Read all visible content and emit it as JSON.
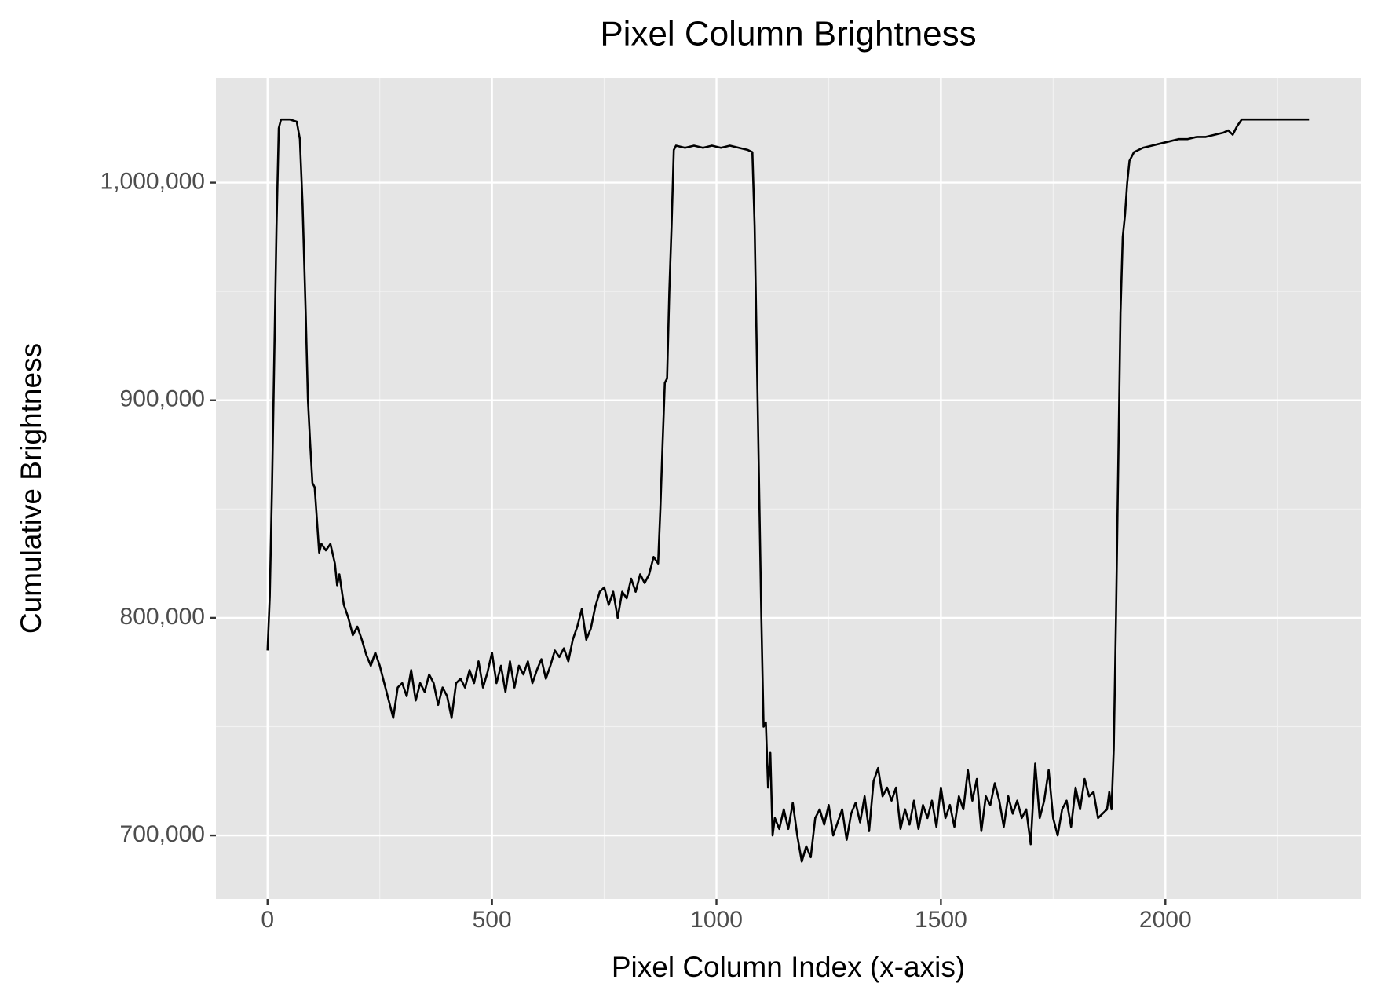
{
  "chart_data": {
    "type": "line",
    "title": "Pixel Column Brightness",
    "x_label": "Pixel Column Index (x-axis)",
    "y_label": "Cumulative Brightness",
    "xlim": [
      -115,
      2435
    ],
    "ylim": [
      670800,
      1048200
    ],
    "xticks": [
      0,
      500,
      1000,
      1500,
      2000
    ],
    "yticks": [
      {
        "value": 700000,
        "label": "700,000"
      },
      {
        "value": 800000,
        "label": "800,000"
      },
      {
        "value": 900000,
        "label": "900,000"
      },
      {
        "value": 1000000,
        "label": "1,000,000"
      }
    ],
    "xminor": [
      250,
      750,
      1250,
      1750,
      2250
    ],
    "yminor": [
      750000,
      850000,
      950000
    ],
    "grid": true,
    "x": [
      0,
      5,
      10,
      15,
      20,
      25,
      30,
      50,
      65,
      72,
      78,
      85,
      90,
      95,
      100,
      105,
      110,
      115,
      120,
      130,
      140,
      150,
      155,
      160,
      170,
      180,
      190,
      200,
      210,
      220,
      230,
      240,
      250,
      260,
      270,
      280,
      290,
      300,
      310,
      320,
      330,
      340,
      350,
      360,
      370,
      380,
      390,
      400,
      410,
      420,
      430,
      440,
      450,
      460,
      470,
      480,
      490,
      500,
      510,
      520,
      530,
      540,
      550,
      560,
      570,
      580,
      590,
      600,
      610,
      620,
      630,
      640,
      650,
      660,
      670,
      680,
      690,
      700,
      710,
      720,
      730,
      740,
      750,
      760,
      770,
      780,
      790,
      800,
      810,
      820,
      830,
      840,
      850,
      860,
      870,
      875,
      880,
      885,
      890,
      895,
      900,
      905,
      910,
      930,
      950,
      970,
      990,
      1010,
      1030,
      1050,
      1070,
      1080,
      1085,
      1090,
      1095,
      1100,
      1105,
      1110,
      1115,
      1120,
      1125,
      1130,
      1140,
      1150,
      1160,
      1170,
      1180,
      1190,
      1200,
      1210,
      1220,
      1230,
      1240,
      1250,
      1260,
      1270,
      1280,
      1290,
      1300,
      1310,
      1320,
      1330,
      1340,
      1350,
      1360,
      1370,
      1380,
      1390,
      1400,
      1410,
      1420,
      1430,
      1440,
      1450,
      1460,
      1470,
      1480,
      1490,
      1500,
      1510,
      1520,
      1530,
      1540,
      1550,
      1560,
      1570,
      1580,
      1590,
      1600,
      1610,
      1620,
      1630,
      1640,
      1650,
      1660,
      1670,
      1680,
      1690,
      1700,
      1710,
      1720,
      1730,
      1740,
      1750,
      1760,
      1770,
      1780,
      1790,
      1800,
      1810,
      1820,
      1830,
      1840,
      1850,
      1860,
      1870,
      1875,
      1880,
      1885,
      1890,
      1895,
      1900,
      1905,
      1910,
      1915,
      1920,
      1930,
      1950,
      1970,
      1990,
      2010,
      2030,
      2050,
      2070,
      2090,
      2110,
      2130,
      2140,
      2150,
      2160,
      2170,
      2200,
      2250,
      2300,
      2320
    ],
    "series": [
      {
        "color": "#000000",
        "values": [
          785000,
          810000,
          860000,
          920000,
          980000,
          1025000,
          1029000,
          1029000,
          1028000,
          1020000,
          990000,
          940000,
          900000,
          880000,
          862000,
          860000,
          845000,
          830000,
          834000,
          831000,
          834000,
          825000,
          815000,
          820000,
          806000,
          800000,
          792000,
          796000,
          790000,
          783000,
          778000,
          784000,
          778000,
          770000,
          762000,
          754000,
          768000,
          770000,
          764000,
          776000,
          762000,
          770000,
          766000,
          774000,
          770000,
          760000,
          768000,
          764000,
          754000,
          770000,
          772000,
          768000,
          776000,
          770000,
          780000,
          768000,
          775000,
          784000,
          770000,
          778000,
          766000,
          780000,
          768000,
          778000,
          774000,
          780000,
          770000,
          776000,
          781000,
          772000,
          778000,
          785000,
          782000,
          786000,
          780000,
          790000,
          796000,
          804000,
          790000,
          795000,
          805000,
          812000,
          814000,
          806000,
          812000,
          800000,
          812000,
          809000,
          818000,
          812000,
          820000,
          816000,
          820000,
          828000,
          825000,
          850000,
          880000,
          908000,
          910000,
          950000,
          980000,
          1015000,
          1017000,
          1016000,
          1017000,
          1016000,
          1017000,
          1016000,
          1017000,
          1016000,
          1015000,
          1014000,
          980000,
          920000,
          860000,
          800000,
          750000,
          752000,
          722000,
          738000,
          700000,
          708000,
          703000,
          712000,
          703000,
          715000,
          700000,
          688000,
          695000,
          690000,
          708000,
          712000,
          705000,
          714000,
          700000,
          706000,
          712000,
          698000,
          710000,
          715000,
          706000,
          718000,
          702000,
          725000,
          731000,
          718000,
          722000,
          716000,
          722000,
          703000,
          712000,
          705000,
          716000,
          703000,
          714000,
          708000,
          716000,
          704000,
          722000,
          708000,
          714000,
          704000,
          718000,
          712000,
          730000,
          716000,
          726000,
          702000,
          718000,
          714000,
          724000,
          716000,
          704000,
          718000,
          710000,
          716000,
          708000,
          712000,
          696000,
          733000,
          708000,
          716000,
          730000,
          708000,
          700000,
          712000,
          716000,
          704000,
          722000,
          712000,
          726000,
          718000,
          720000,
          708000,
          710000,
          712000,
          720000,
          712000,
          740000,
          800000,
          870000,
          940000,
          975000,
          985000,
          1000000,
          1010000,
          1014000,
          1016000,
          1017000,
          1018000,
          1019000,
          1020000,
          1020000,
          1021000,
          1021000,
          1022000,
          1023000,
          1024000,
          1022000,
          1026000,
          1029000,
          1029000,
          1029000,
          1029000,
          1029000
        ]
      }
    ]
  }
}
